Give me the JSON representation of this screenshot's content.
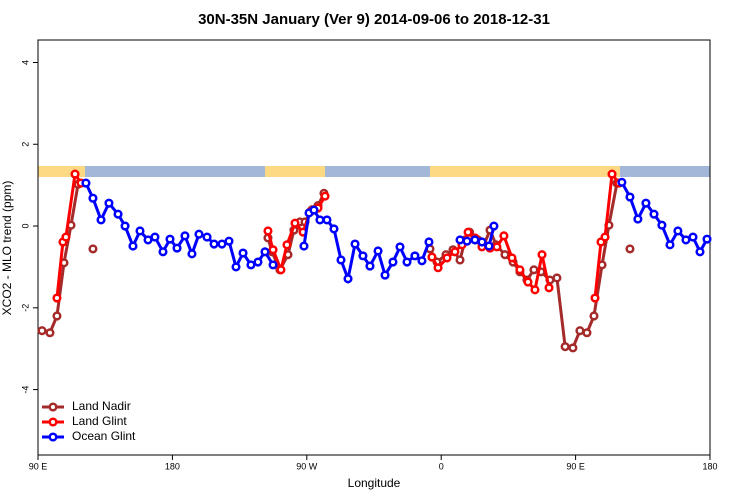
{
  "chart_data": {
    "type": "line",
    "title": "30N-35N January (Ver 9)   2014-09-06 to 2018-12-31",
    "xlabel": "Longitude",
    "ylabel": "XCO2 - MLO trend (ppm)",
    "xlim": [
      90,
      540
    ],
    "ylim": [
      -5.6,
      4.55
    ],
    "xticks": [
      {
        "value": 90,
        "label": "90 E"
      },
      {
        "value": 180,
        "label": "180"
      },
      {
        "value": 270,
        "label": "90 W"
      },
      {
        "value": 360,
        "label": "0"
      },
      {
        "value": 450,
        "label": "90 E"
      },
      {
        "value": 540,
        "label": "180"
      }
    ],
    "yticks": [
      -4,
      -2,
      0,
      2,
      4
    ],
    "legend": "bottom-left",
    "series": [
      {
        "name": "Land Nadir",
        "color": "#a52a2a",
        "x": [
          92.7,
          98.0,
          102.7,
          107.4,
          112.1,
          116.8,
          null,
          126.8,
          null,
          244.0,
          246.7,
          252.0,
          257.4,
          261.4,
          265.4,
          268.8,
          273.5,
          277.5,
          281.5,
          null,
          352.5,
          357.2,
          363.2,
          367.9,
          372.6,
          376.0,
          379.0,
          384.6,
          388.6,
          392.7,
          396.7,
          402.7,
          408.1,
          412.7,
          417.4,
          422.1,
          426.8,
          432.8,
          437.5,
          443.0,
          448.2,
          452.9,
          457.6,
          462.3,
          467.7,
          472.3,
          477.7,
          null,
          486.4
        ],
        "values": [
          -2.56,
          -2.61,
          -2.2,
          -0.9,
          0.02,
          1.02,
          null,
          -0.56,
          null,
          -0.29,
          -0.63,
          -1.07,
          -0.7,
          -0.1,
          0.1,
          0.1,
          0.4,
          0.5,
          0.8,
          null,
          -0.56,
          -0.88,
          -0.7,
          -0.58,
          -0.83,
          -0.34,
          -0.15,
          -0.34,
          -0.46,
          -0.1,
          -0.46,
          -0.7,
          -0.88,
          -1.12,
          -1.32,
          -1.07,
          -1.12,
          -1.32,
          -1.27,
          -2.95,
          -2.98,
          -2.56,
          -2.61,
          -2.2,
          -0.95,
          0.02,
          1.05,
          null,
          -0.56
        ]
      },
      {
        "name": "Land Glint",
        "color": "#ff0000",
        "x": [
          102.7,
          106.7,
          108.7,
          114.8,
          118.8,
          null,
          244.0,
          247.4,
          252.7,
          256.7,
          262.1,
          267.5,
          272.1,
          277.5,
          282.2,
          null,
          353.8,
          357.9,
          363.9,
          369.2,
          373.9,
          378.0,
          382.6,
          387.3,
          392.7,
          397.3,
          402.0,
          407.4,
          412.7,
          418.1,
          422.8,
          427.5,
          432.2,
          null,
          463.0,
          467.0,
          469.7,
          474.4,
          479.0
        ],
        "values": [
          -1.76,
          -0.39,
          -0.27,
          1.27,
          1.05,
          null,
          -0.12,
          -0.58,
          -1.07,
          -0.46,
          0.07,
          -0.15,
          0.34,
          0.44,
          0.73,
          null,
          -0.76,
          -1.02,
          -0.78,
          -0.63,
          -0.46,
          -0.15,
          -0.29,
          -0.51,
          -0.54,
          -0.51,
          -0.24,
          -0.78,
          -1.07,
          -1.37,
          -1.56,
          -0.7,
          -1.51,
          null,
          -1.76,
          -0.39,
          -0.27,
          1.27,
          1.05
        ]
      },
      {
        "name": "Ocean Glint",
        "color": "#0000ff",
        "x": [
          122.1,
          126.8,
          132.2,
          137.5,
          143.6,
          148.3,
          153.6,
          158.3,
          163.7,
          168.3,
          173.7,
          178.4,
          183.1,
          188.4,
          193.1,
          197.8,
          203.2,
          207.9,
          213.2,
          217.9,
          222.6,
          227.3,
          232.6,
          237.3,
          242.0,
          247.4,
          null,
          268.1,
          271.5,
          274.8,
          278.8,
          283.5,
          288.2,
          292.9,
          297.6,
          302.3,
          307.6,
          312.3,
          317.7,
          322.4,
          327.7,
          332.4,
          337.1,
          342.4,
          347.1,
          351.8,
          null,
          372.6,
          377.3,
          382.6,
          387.3,
          392.0,
          395.3,
          null,
          481.0,
          486.4,
          491.7,
          497.1,
          502.5,
          507.8,
          513.2,
          518.5,
          523.9,
          528.6,
          533.3,
          538.0
        ],
        "values": [
          1.05,
          0.68,
          0.15,
          0.56,
          0.29,
          0,
          -0.49,
          -0.12,
          -0.34,
          -0.27,
          -0.63,
          -0.32,
          -0.54,
          -0.24,
          -0.68,
          -0.2,
          -0.27,
          -0.44,
          -0.44,
          -0.37,
          -1.0,
          -0.66,
          -0.95,
          -0.88,
          -0.63,
          -0.95,
          null,
          -0.49,
          0.32,
          0.39,
          0.15,
          0.15,
          -0.07,
          -0.83,
          -1.29,
          -0.44,
          -0.73,
          -0.98,
          -0.61,
          -1.2,
          -0.88,
          -0.51,
          -0.88,
          -0.73,
          -0.85,
          -0.39,
          null,
          -0.34,
          -0.37,
          -0.34,
          -0.39,
          -0.49,
          0,
          null,
          1.07,
          0.71,
          0.17,
          0.56,
          0.29,
          0.02,
          -0.46,
          -0.12,
          -0.34,
          -0.27,
          -0.63,
          -0.32
        ]
      }
    ]
  }
}
